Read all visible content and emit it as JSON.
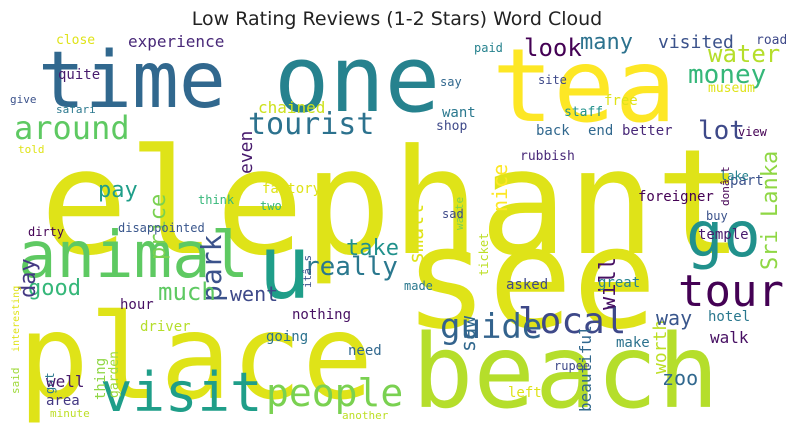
{
  "title": "Low Rating Reviews (1-2 Stars) Word Cloud",
  "words": [
    {
      "t": "elephant",
      "c": "#dfe318"
    },
    {
      "t": "see",
      "c": "#dfe318"
    },
    {
      "t": "place",
      "c": "#dfe318"
    },
    {
      "t": "beach",
      "c": "#b5de2b"
    },
    {
      "t": "tea",
      "c": "#fde725"
    },
    {
      "t": "time",
      "c": "#31688e"
    },
    {
      "t": "one",
      "c": "#26828e"
    },
    {
      "t": "animal",
      "c": "#5ec962"
    },
    {
      "t": "u",
      "c": "#1f9e89"
    },
    {
      "t": "visit",
      "c": "#1f9e89"
    },
    {
      "t": "go",
      "c": "#21918c"
    },
    {
      "t": "tour",
      "c": "#440154"
    },
    {
      "t": "around",
      "c": "#5ec962"
    },
    {
      "t": "tourist",
      "c": "#2c728e"
    },
    {
      "t": "park",
      "c": "#3b528b"
    },
    {
      "t": "people",
      "c": "#7ad151"
    },
    {
      "t": "local",
      "c": "#3e4989"
    },
    {
      "t": "guide",
      "c": "#33638d"
    },
    {
      "t": "really",
      "c": "#2a788e"
    },
    {
      "t": "much",
      "c": "#5ec962"
    },
    {
      "t": "Sri Lanka",
      "c": "#8fd744"
    },
    {
      "t": "money",
      "c": "#35b779"
    },
    {
      "t": "water",
      "c": "#b5de2b"
    },
    {
      "t": "lot",
      "c": "#3e4989"
    },
    {
      "t": "look",
      "c": "#440154"
    },
    {
      "t": "many",
      "c": "#2c728e"
    },
    {
      "t": "visited",
      "c": "#3b528b"
    },
    {
      "t": "even",
      "c": "#481b6d"
    },
    {
      "t": "nice",
      "c": "#fde725"
    },
    {
      "t": "price",
      "c": "#7ad151"
    },
    {
      "t": "pay",
      "c": "#1f9e89"
    },
    {
      "t": "take",
      "c": "#21918c"
    },
    {
      "t": "good",
      "c": "#35b779"
    },
    {
      "t": "went",
      "c": "#3e4989"
    },
    {
      "t": "day",
      "c": "#443983"
    },
    {
      "t": "will",
      "c": "#471063"
    },
    {
      "t": "worth",
      "c": "#bddf26"
    },
    {
      "t": "way",
      "c": "#39568c"
    },
    {
      "t": "zoo",
      "c": "#31688e"
    },
    {
      "t": "saw",
      "c": "#31688e"
    },
    {
      "t": "small",
      "c": "#dfe318"
    },
    {
      "t": "experience",
      "c": "#482878"
    },
    {
      "t": "chained",
      "c": "#cde11d"
    },
    {
      "t": "back",
      "c": "#31688e"
    },
    {
      "t": "end",
      "c": "#31688e"
    },
    {
      "t": "better",
      "c": "#482878"
    },
    {
      "t": "want",
      "c": "#2a788e"
    },
    {
      "t": "shop",
      "c": "#3e4989"
    },
    {
      "t": "free",
      "c": "#dfe318"
    },
    {
      "t": "staff",
      "c": "#21918c"
    },
    {
      "t": "museum",
      "c": "#dfe318"
    },
    {
      "t": "quite",
      "c": "#481b6d"
    },
    {
      "t": "close",
      "c": "#dfe318"
    },
    {
      "t": "paid",
      "c": "#26828e"
    },
    {
      "t": "road",
      "c": "#3e4989"
    },
    {
      "t": "say",
      "c": "#31688e"
    },
    {
      "t": "site",
      "c": "#3e4989"
    },
    {
      "t": "view",
      "c": "#440154"
    },
    {
      "t": "give",
      "c": "#3b528b"
    },
    {
      "t": "safari",
      "c": "#2a788e"
    },
    {
      "t": "told",
      "c": "#dfe318"
    },
    {
      "t": "factory",
      "c": "#dfe318"
    },
    {
      "t": "two",
      "c": "#35b779"
    },
    {
      "t": "think",
      "c": "#35b779"
    },
    {
      "t": "disappointed",
      "c": "#39568c"
    },
    {
      "t": "dirty",
      "c": "#440154"
    },
    {
      "t": "nothing",
      "c": "#471063"
    },
    {
      "t": "rubbish",
      "c": "#482878"
    },
    {
      "t": "waste",
      "c": "#7ad151"
    },
    {
      "t": "ticket",
      "c": "#bddf26"
    },
    {
      "t": "sad",
      "c": "#3e4989"
    },
    {
      "t": "itâ s",
      "c": "#3b528b"
    },
    {
      "t": "donâ t",
      "c": "#440154"
    },
    {
      "t": "foreigner",
      "c": "#440154"
    },
    {
      "t": "part",
      "c": "#3b528b"
    },
    {
      "t": "lake",
      "c": "#26828e"
    },
    {
      "t": "buy",
      "c": "#3b528b"
    },
    {
      "t": "temple",
      "c": "#481b6d"
    },
    {
      "t": "great",
      "c": "#26828e"
    },
    {
      "t": "hotel",
      "c": "#2a788e"
    },
    {
      "t": "walk",
      "c": "#471063"
    },
    {
      "t": "make",
      "c": "#2c728e"
    },
    {
      "t": "beautiful",
      "c": "#31688e"
    },
    {
      "t": "asked",
      "c": "#3e4989"
    },
    {
      "t": "made",
      "c": "#2a788e"
    },
    {
      "t": "hour",
      "c": "#471063"
    },
    {
      "t": "thing",
      "c": "#8fd744"
    },
    {
      "t": "garden",
      "c": "#9fda3a"
    },
    {
      "t": "driver",
      "c": "#b5de2b"
    },
    {
      "t": "going",
      "c": "#2c728e"
    },
    {
      "t": "need",
      "c": "#31688e"
    },
    {
      "t": "got",
      "c": "#2a788e"
    },
    {
      "t": "well",
      "c": "#481b6d"
    },
    {
      "t": "area",
      "c": "#443983"
    },
    {
      "t": "minute",
      "c": "#bddf26"
    },
    {
      "t": "another",
      "c": "#bddf26"
    },
    {
      "t": "left",
      "c": "#dfe318"
    },
    {
      "t": "rupee",
      "c": "#3e4989"
    },
    {
      "t": "said",
      "c": "#9fda3a"
    },
    {
      "t": "interesting",
      "c": "#dfe318"
    }
  ]
}
